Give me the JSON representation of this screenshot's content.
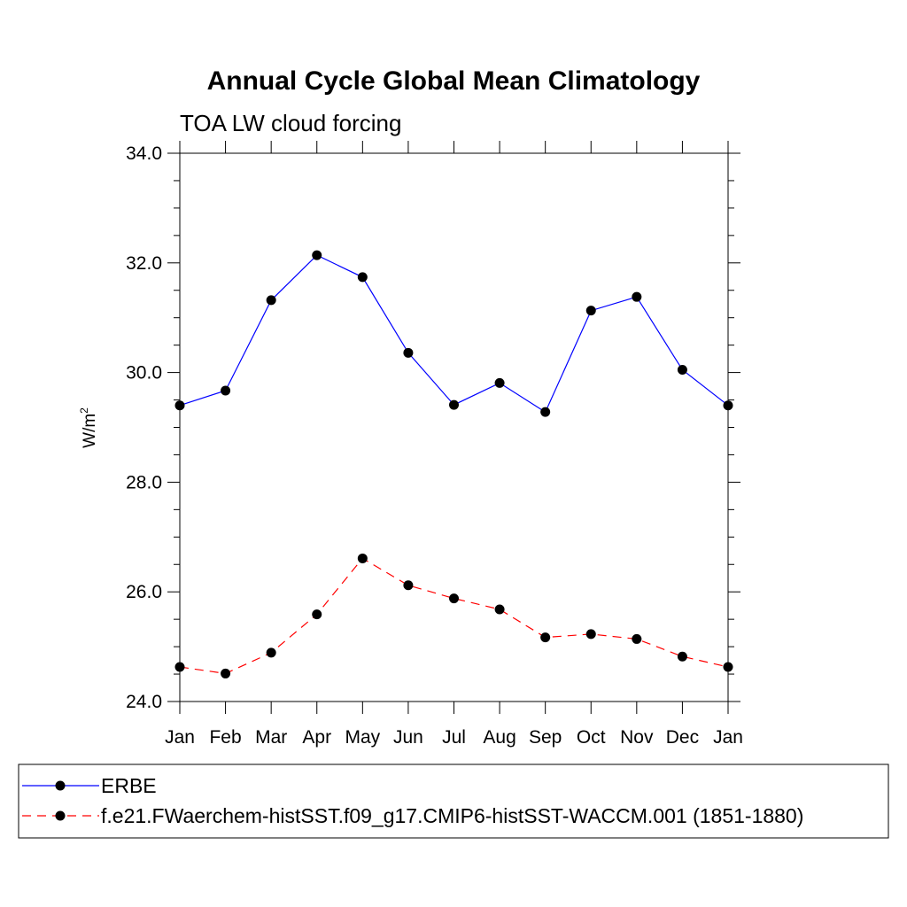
{
  "chart_data": {
    "type": "line",
    "title": "Annual Cycle Global Mean Climatology",
    "subtitle": "TOA LW cloud forcing",
    "xlabel": "",
    "ylabel_base": "W/m",
    "ylabel_sup": "2",
    "categories": [
      "Jan",
      "Feb",
      "Mar",
      "Apr",
      "May",
      "Jun",
      "Jul",
      "Aug",
      "Sep",
      "Oct",
      "Nov",
      "Dec",
      "Jan"
    ],
    "ylim": [
      24.0,
      34.0
    ],
    "yticks": [
      "24.0",
      "26.0",
      "28.0",
      "30.0",
      "32.0",
      "34.0"
    ],
    "series": [
      {
        "name": "ERBE",
        "color": "#0000ff",
        "dash": "solid",
        "values": [
          29.4,
          29.67,
          31.32,
          32.14,
          31.74,
          30.36,
          29.41,
          29.81,
          29.28,
          31.13,
          31.38,
          30.05,
          29.4
        ]
      },
      {
        "name": "f.e21.FWaerchem-histSST.f09_g17.CMIP6-histSST-WACCM.001 (1851-1880)",
        "color": "#ff0000",
        "dash": "dashed",
        "values": [
          24.63,
          24.51,
          24.89,
          25.59,
          26.61,
          26.12,
          25.88,
          25.68,
          25.17,
          25.23,
          25.14,
          24.82,
          24.63
        ]
      }
    ],
    "legend_position": "bottom"
  }
}
